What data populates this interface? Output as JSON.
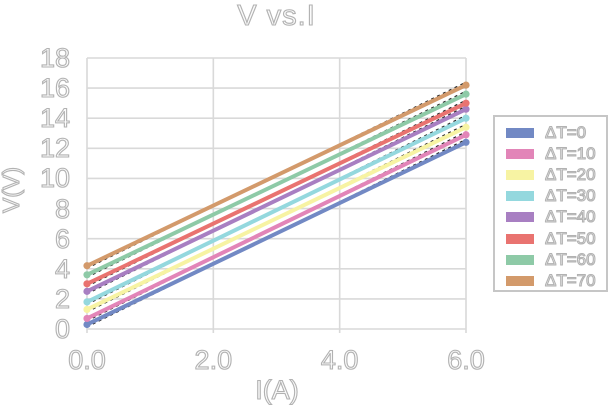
{
  "title": "V vs.I",
  "axes": {
    "x_label": "I(A)",
    "y_label": "V(V)",
    "x_ticks": [
      "0.0",
      "2.0",
      "4.0",
      "6.0"
    ],
    "y_ticks": [
      "0",
      "2",
      "4",
      "6",
      "8",
      "10",
      "12",
      "14",
      "16",
      "18"
    ]
  },
  "colors": {
    "background": "#ffffff",
    "gridline": "#d9d9d9",
    "plot_border": "#d4d4d4",
    "trendline": "#2a2a2a",
    "text_outline": "#b2b2b2",
    "legend_border": "#c6c6c6"
  },
  "chart_data": {
    "type": "line",
    "title": "V vs.I",
    "xlabel": "I(A)",
    "ylabel": "V(V)",
    "xlim": [
      0,
      6
    ],
    "ylim": [
      0,
      18
    ],
    "x_tick_values": [
      0,
      2,
      4,
      6
    ],
    "y_tick_step": 2,
    "grid": true,
    "legend_position": "right",
    "x": [
      0,
      6
    ],
    "series": [
      {
        "name": "ΔT=0",
        "color": "#7289c4",
        "values": [
          0.3,
          12.4
        ]
      },
      {
        "name": "ΔT=10",
        "color": "#e285b8",
        "values": [
          0.7,
          12.9
        ]
      },
      {
        "name": "ΔT=20",
        "color": "#f7f3a3",
        "values": [
          1.3,
          13.4
        ]
      },
      {
        "name": "ΔT=30",
        "color": "#94d8de",
        "values": [
          1.8,
          14.0
        ]
      },
      {
        "name": "ΔT=40",
        "color": "#a87fc2",
        "values": [
          2.5,
          14.6
        ]
      },
      {
        "name": "ΔT=50",
        "color": "#e97370",
        "values": [
          3.0,
          15.0
        ]
      },
      {
        "name": "ΔT=60",
        "color": "#8ecaa7",
        "values": [
          3.6,
          15.6
        ]
      },
      {
        "name": "ΔT=70",
        "color": "#d39a6b",
        "values": [
          4.2,
          16.2
        ]
      }
    ],
    "annotations": "each colored series has a black dashed linear trendline drawn along it"
  }
}
